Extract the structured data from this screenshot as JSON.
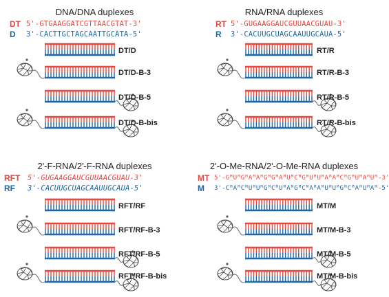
{
  "colors": {
    "top_strand": "#e8473e",
    "bottom_strand": "#1f66a6",
    "rungs_top": "#e8473e",
    "rungs_bottom": "#1f66a6",
    "linker": "#666666"
  },
  "panels": [
    {
      "title": "DNA/DNA duplexes",
      "top_label": "DT",
      "top_seq": "5'-GTGAAGGATCGTTAACGTAT-3'",
      "bottom_label": "D",
      "bottom_seq": "3'-CACTTGCTAGCAATTGCATA-5'",
      "duplexes": [
        "DT/D",
        "DT/D-B-3",
        "DT/D-B-5",
        "DT/D-B-bis"
      ]
    },
    {
      "title": "RNA/RNA duplexes",
      "top_label": "RT",
      "top_seq": "5'-GUGAAGGAUCGUUAACGUAU-3'",
      "bottom_label": "R",
      "bottom_seq": "3'-CACUUGCUAGCAAUUGCAUA-5'",
      "duplexes": [
        "RT/R",
        "RT/R-B-3",
        "RT/R-B-5",
        "RT/R-B-bis"
      ]
    },
    {
      "title": "2'-F-RNA/2'-F-RNA duplexes",
      "top_label": "RFT",
      "top_seq": "5'-GUGAAGGAUCGUUAACGUAU-3'",
      "bottom_label": "RF",
      "bottom_seq": "3'-CACUUGCUAGCAAUUGCAUA-5'",
      "duplexes": [
        "RFT/RF",
        "RFT/RF-B-3",
        "RFT/RF-B-5",
        "RFT/RF-B-bis"
      ]
    },
    {
      "title": "2'-O-Me-RNA/2'-O-Me-RNA duplexes",
      "top_label": "MT",
      "top_seq": "5'-GᴹUᴹGᴹAᴹAᴹGᴹGᴹAᴹUᴹCᴹGᴹUᴹUᴹAᴹAᴹCᴹGᴹUᴹAᴹUᴹ-3'",
      "bottom_label": "M",
      "bottom_seq": "3'-CᴹAᴹCᴹUᴹUᴹGᴹCᴹUᴹAᴹGᴹCᴹAᴹAᴹUᴹUᴹGᴹCᴹAᴹUᴹAᴹ-5'",
      "duplexes": [
        "MT/M",
        "MT/M-B-3",
        "MT/M-B-5",
        "MT/M-B-bis"
      ]
    }
  ]
}
